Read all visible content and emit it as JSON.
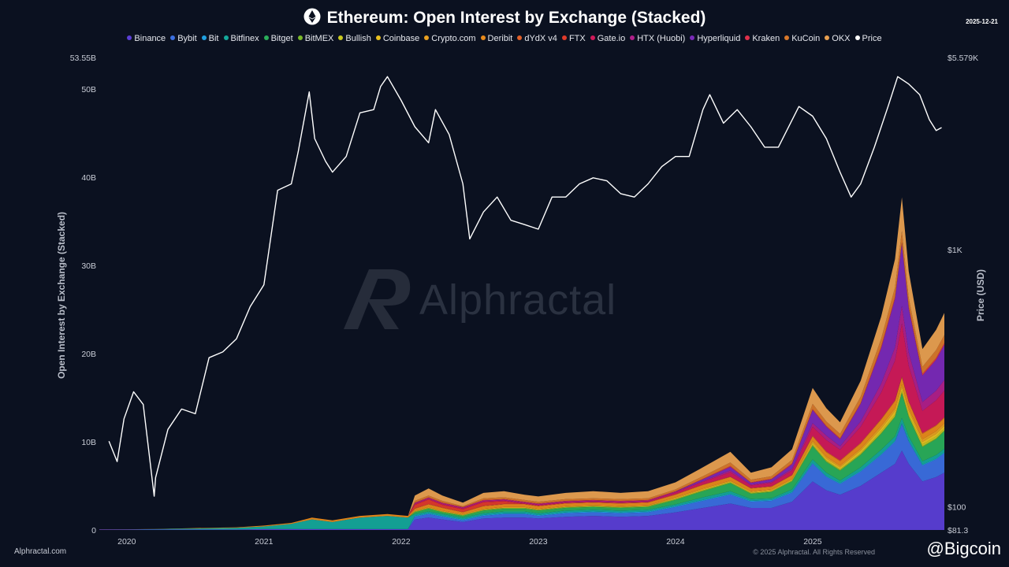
{
  "title": "Ethereum: Open Interest by Exchange (Stacked)",
  "date": "2025-12-21",
  "footer": {
    "site": "Alphractal.com",
    "copyright": "© 2025 Alphractal. All Rights Reserved",
    "brand": "Alphractal",
    "bigcoin": "@Bigcoin"
  },
  "chart_data": {
    "type": "area",
    "title": "Ethereum: Open Interest by Exchange (Stacked)",
    "ylabel": "Open Interest by Exchange (Stacked)",
    "ylabel_right": "Price (USD)",
    "ylim": [
      0,
      53.55
    ],
    "ylim_right": [
      81.3,
      5579
    ],
    "yticks": [
      {
        "value": 0,
        "label": "0"
      },
      {
        "value": 10,
        "label": "10B"
      },
      {
        "value": 20,
        "label": "20B"
      },
      {
        "value": 30,
        "label": "30B"
      },
      {
        "value": 40,
        "label": "40B"
      },
      {
        "value": 50,
        "label": "50B"
      },
      {
        "value": 53.55,
        "label": "53.55B"
      }
    ],
    "yticks_right": [
      {
        "value": 81.3,
        "label": "$81.3"
      },
      {
        "value": 100,
        "label": "$100"
      },
      {
        "value": 1000,
        "label": "$1K"
      },
      {
        "value": 5579,
        "label": "$5.579K"
      }
    ],
    "xlim": [
      2019.8,
      2025.96
    ],
    "xticks": [
      {
        "value": 2020,
        "label": "2020"
      },
      {
        "value": 2021,
        "label": "2021"
      },
      {
        "value": 2022,
        "label": "2022"
      },
      {
        "value": 2023,
        "label": "2023"
      },
      {
        "value": 2024,
        "label": "2024"
      },
      {
        "value": 2025,
        "label": "2025"
      }
    ],
    "x": [
      2019.8,
      2020.0,
      2020.2,
      2020.4,
      2020.6,
      2020.8,
      2021.0,
      2021.2,
      2021.35,
      2021.5,
      2021.7,
      2021.9,
      2022.05,
      2022.1,
      2022.2,
      2022.3,
      2022.45,
      2022.6,
      2022.75,
      2022.9,
      2023.0,
      2023.2,
      2023.4,
      2023.6,
      2023.8,
      2024.0,
      2024.2,
      2024.4,
      2024.55,
      2024.7,
      2024.85,
      2025.0,
      2025.1,
      2025.2,
      2025.35,
      2025.5,
      2025.6,
      2025.65,
      2025.7,
      2025.8,
      2025.9,
      2025.96
    ],
    "series": [
      {
        "name": "Binance",
        "color": "#5b3fd6",
        "values": [
          0.05,
          0.05,
          0.05,
          0.05,
          0.05,
          0.05,
          0.1,
          0.1,
          0.1,
          0.1,
          0.1,
          0.1,
          0.1,
          1.2,
          1.4,
          1.2,
          0.9,
          1.3,
          1.4,
          1.4,
          1.3,
          1.5,
          1.6,
          1.5,
          1.6,
          2.0,
          2.5,
          3.0,
          2.5,
          2.5,
          3.2,
          5.5,
          4.5,
          4.0,
          5.0,
          6.5,
          7.5,
          9.0,
          7.5,
          5.5,
          6.0,
          6.5
        ]
      },
      {
        "name": "Bybit",
        "color": "#3b6fe0",
        "values": [
          0,
          0,
          0,
          0,
          0,
          0,
          0,
          0,
          0,
          0,
          0,
          0,
          0,
          0.3,
          0.4,
          0.3,
          0.2,
          0.3,
          0.4,
          0.4,
          0.3,
          0.4,
          0.4,
          0.4,
          0.4,
          0.6,
          0.8,
          1.0,
          0.7,
          0.8,
          1.0,
          2.0,
          1.5,
          1.2,
          1.6,
          2.0,
          2.5,
          3.0,
          2.5,
          1.8,
          2.0,
          2.2
        ]
      },
      {
        "name": "Bit",
        "color": "#1fa0e0",
        "values": [
          0,
          0,
          0,
          0,
          0,
          0,
          0,
          0,
          0,
          0,
          0,
          0,
          0,
          0.1,
          0.1,
          0.1,
          0.1,
          0.1,
          0.1,
          0.1,
          0.1,
          0.1,
          0.1,
          0.1,
          0.1,
          0.1,
          0.1,
          0.1,
          0.1,
          0.1,
          0.1,
          0.1,
          0.1,
          0.1,
          0.1,
          0.1,
          0.1,
          0.1,
          0.1,
          0.1,
          0.1,
          0.1
        ]
      },
      {
        "name": "Bitfinex",
        "color": "#14a89a",
        "values": [
          0,
          0.02,
          0.05,
          0.1,
          0.15,
          0.2,
          0.3,
          0.6,
          1.1,
          0.8,
          1.3,
          1.5,
          1.3,
          0.2,
          0.2,
          0.2,
          0.2,
          0.2,
          0.2,
          0.2,
          0.2,
          0.2,
          0.2,
          0.2,
          0.2,
          0.2,
          0.3,
          0.3,
          0.2,
          0.2,
          0.3,
          0.4,
          0.4,
          0.3,
          0.4,
          0.5,
          0.5,
          0.6,
          0.5,
          0.4,
          0.4,
          0.4
        ]
      },
      {
        "name": "Bitget",
        "color": "#2aae5a",
        "values": [
          0,
          0,
          0,
          0,
          0,
          0,
          0,
          0,
          0,
          0,
          0,
          0,
          0,
          0.2,
          0.3,
          0.2,
          0.2,
          0.3,
          0.3,
          0.3,
          0.3,
          0.3,
          0.3,
          0.3,
          0.3,
          0.5,
          0.7,
          0.9,
          0.6,
          0.7,
          0.9,
          1.5,
          1.2,
          1.1,
          1.4,
          1.8,
          2.2,
          2.8,
          2.2,
          1.6,
          1.8,
          2.0
        ]
      },
      {
        "name": "BitMEX",
        "color": "#7ab82a",
        "values": [
          0,
          0,
          0,
          0,
          0,
          0,
          0,
          0,
          0,
          0,
          0,
          0,
          0,
          0.1,
          0.1,
          0.1,
          0.1,
          0.1,
          0.1,
          0.1,
          0.1,
          0.1,
          0.1,
          0.1,
          0.1,
          0.1,
          0.1,
          0.1,
          0.1,
          0.1,
          0.1,
          0.1,
          0.1,
          0.1,
          0.1,
          0.1,
          0.1,
          0.1,
          0.1,
          0.1,
          0.1,
          0.1
        ]
      },
      {
        "name": "Bullish",
        "color": "#c8c820",
        "values": [
          0,
          0,
          0,
          0,
          0,
          0,
          0,
          0,
          0,
          0,
          0,
          0,
          0,
          0,
          0,
          0,
          0,
          0,
          0,
          0,
          0,
          0,
          0,
          0,
          0,
          0,
          0,
          0,
          0,
          0,
          0,
          0.1,
          0.1,
          0.1,
          0.1,
          0.2,
          0.2,
          0.2,
          0.2,
          0.2,
          0.2,
          0.2
        ]
      },
      {
        "name": "Coinbase",
        "color": "#e8c020",
        "values": [
          0,
          0,
          0,
          0,
          0,
          0,
          0,
          0,
          0,
          0,
          0,
          0,
          0,
          0,
          0,
          0,
          0,
          0,
          0,
          0,
          0,
          0,
          0,
          0,
          0,
          0.1,
          0.1,
          0.1,
          0.1,
          0.1,
          0.1,
          0.2,
          0.2,
          0.2,
          0.3,
          0.3,
          0.4,
          0.4,
          0.4,
          0.3,
          0.3,
          0.3
        ]
      },
      {
        "name": "Crypto.com",
        "color": "#e8a020",
        "values": [
          0,
          0,
          0,
          0,
          0,
          0,
          0,
          0,
          0,
          0,
          0,
          0,
          0,
          0.1,
          0.1,
          0.1,
          0.1,
          0.1,
          0.1,
          0.1,
          0.1,
          0.1,
          0.1,
          0.1,
          0.1,
          0.1,
          0.1,
          0.1,
          0.1,
          0.1,
          0.1,
          0.2,
          0.2,
          0.2,
          0.2,
          0.3,
          0.3,
          0.3,
          0.3,
          0.3,
          0.3,
          0.3
        ]
      },
      {
        "name": "Deribit",
        "color": "#e88a1a",
        "values": [
          0.01,
          0.01,
          0.02,
          0.03,
          0.05,
          0.05,
          0.1,
          0.1,
          0.2,
          0.2,
          0.2,
          0.2,
          0.2,
          0.2,
          0.3,
          0.3,
          0.2,
          0.3,
          0.3,
          0.3,
          0.3,
          0.3,
          0.3,
          0.3,
          0.3,
          0.3,
          0.4,
          0.4,
          0.3,
          0.3,
          0.4,
          0.5,
          0.5,
          0.5,
          0.6,
          0.7,
          0.8,
          0.8,
          0.7,
          0.6,
          0.6,
          0.6
        ]
      },
      {
        "name": "dYdX v4",
        "color": "#e0602a",
        "values": [
          0,
          0,
          0,
          0,
          0,
          0,
          0,
          0,
          0,
          0,
          0,
          0,
          0,
          0.05,
          0.05,
          0.05,
          0.05,
          0.05,
          0.05,
          0.05,
          0.05,
          0.05,
          0.05,
          0.05,
          0.05,
          0.05,
          0.05,
          0.05,
          0.05,
          0.05,
          0.05,
          0.1,
          0.1,
          0.1,
          0.1,
          0.1,
          0.1,
          0.1,
          0.1,
          0.1,
          0.1,
          0.1
        ]
      },
      {
        "name": "FTX",
        "color": "#e03a2a",
        "values": [
          0,
          0,
          0,
          0,
          0,
          0,
          0,
          0,
          0,
          0,
          0,
          0,
          0,
          0.4,
          0.5,
          0.3,
          0.3,
          0.4,
          0.3,
          0,
          0,
          0,
          0,
          0,
          0,
          0,
          0,
          0,
          0,
          0,
          0,
          0,
          0,
          0,
          0,
          0,
          0,
          0,
          0,
          0,
          0,
          0
        ]
      },
      {
        "name": "Gate.io",
        "color": "#d01a5a",
        "values": [
          0,
          0,
          0,
          0,
          0,
          0,
          0,
          0,
          0,
          0,
          0,
          0,
          0,
          0.1,
          0.1,
          0.1,
          0.1,
          0.1,
          0.1,
          0.1,
          0.1,
          0.1,
          0.1,
          0.1,
          0.1,
          0.2,
          0.3,
          0.5,
          0.3,
          0.4,
          0.5,
          1.0,
          1.3,
          1.2,
          1.8,
          3.0,
          4.5,
          6.0,
          4.0,
          2.5,
          2.8,
          3.0
        ]
      },
      {
        "name": "HTX (Huobi)",
        "color": "#b0208a",
        "values": [
          0,
          0,
          0,
          0,
          0,
          0,
          0,
          0,
          0,
          0,
          0,
          0,
          0,
          0.1,
          0.1,
          0.1,
          0.1,
          0.1,
          0.1,
          0.1,
          0.1,
          0.1,
          0.1,
          0.1,
          0.1,
          0.1,
          0.1,
          0.2,
          0.1,
          0.1,
          0.2,
          0.4,
          0.5,
          0.4,
          0.6,
          1.0,
          1.5,
          2.0,
          1.5,
          1.0,
          1.1,
          1.2
        ]
      },
      {
        "name": "Hyperliquid",
        "color": "#7a2ab8",
        "values": [
          0,
          0,
          0,
          0,
          0,
          0,
          0,
          0,
          0,
          0,
          0,
          0,
          0,
          0,
          0,
          0,
          0,
          0,
          0,
          0,
          0,
          0,
          0,
          0,
          0,
          0,
          0.2,
          0.4,
          0.2,
          0.3,
          0.5,
          1.5,
          1.0,
          0.8,
          2.0,
          4.0,
          5.5,
          7.0,
          5.0,
          3.0,
          3.5,
          4.0
        ]
      },
      {
        "name": "Kraken",
        "color": "#e0304a",
        "values": [
          0,
          0,
          0,
          0,
          0,
          0,
          0,
          0,
          0,
          0,
          0,
          0,
          0,
          0.05,
          0.05,
          0.05,
          0.05,
          0.05,
          0.05,
          0.05,
          0.05,
          0.05,
          0.05,
          0.05,
          0.05,
          0.05,
          0.05,
          0.1,
          0.05,
          0.05,
          0.1,
          0.1,
          0.1,
          0.1,
          0.1,
          0.2,
          0.2,
          0.2,
          0.2,
          0.2,
          0.2,
          0.2
        ]
      },
      {
        "name": "KuCoin",
        "color": "#d8782a",
        "values": [
          0,
          0,
          0,
          0,
          0,
          0,
          0,
          0,
          0,
          0,
          0,
          0,
          0,
          0.2,
          0.2,
          0.2,
          0.1,
          0.2,
          0.2,
          0.2,
          0.2,
          0.2,
          0.2,
          0.2,
          0.2,
          0.2,
          0.3,
          0.4,
          0.3,
          0.3,
          0.4,
          0.6,
          0.5,
          0.5,
          0.7,
          0.9,
          1.1,
          1.3,
          1.0,
          0.8,
          0.9,
          0.9
        ]
      },
      {
        "name": "OKX",
        "color": "#e8a050",
        "values": [
          0,
          0,
          0,
          0,
          0,
          0,
          0,
          0,
          0,
          0,
          0,
          0,
          0,
          0.6,
          0.8,
          0.6,
          0.4,
          0.6,
          0.7,
          0.6,
          0.6,
          0.7,
          0.8,
          0.7,
          0.8,
          0.8,
          1.0,
          1.2,
          0.8,
          1.0,
          1.2,
          1.8,
          1.5,
          1.3,
          1.8,
          2.5,
          3.2,
          3.8,
          3.0,
          2.0,
          2.3,
          2.5
        ]
      }
    ],
    "price": {
      "name": "Price",
      "color": "#ffffff",
      "x": [
        2019.87,
        2019.93,
        2019.98,
        2020.05,
        2020.12,
        2020.2,
        2020.21,
        2020.3,
        2020.4,
        2020.5,
        2020.6,
        2020.7,
        2020.8,
        2020.9,
        2021.0,
        2021.1,
        2021.2,
        2021.25,
        2021.33,
        2021.37,
        2021.45,
        2021.5,
        2021.6,
        2021.7,
        2021.8,
        2021.85,
        2021.9,
        2022.0,
        2022.1,
        2022.2,
        2022.25,
        2022.35,
        2022.45,
        2022.5,
        2022.6,
        2022.7,
        2022.8,
        2022.9,
        2023.0,
        2023.1,
        2023.2,
        2023.3,
        2023.4,
        2023.5,
        2023.6,
        2023.7,
        2023.8,
        2023.9,
        2024.0,
        2024.1,
        2024.2,
        2024.25,
        2024.35,
        2024.45,
        2024.55,
        2024.65,
        2024.75,
        2024.9,
        2025.0,
        2025.1,
        2025.2,
        2025.28,
        2025.35,
        2025.45,
        2025.55,
        2025.62,
        2025.7,
        2025.78,
        2025.85,
        2025.9,
        2025.94
      ],
      "values": [
        180,
        150,
        220,
        280,
        250,
        110,
        130,
        200,
        240,
        230,
        380,
        400,
        450,
        600,
        730,
        1700,
        1800,
        2400,
        4100,
        2700,
        2200,
        2000,
        2300,
        3400,
        3500,
        4300,
        4700,
        3800,
        3000,
        2600,
        3500,
        2800,
        1800,
        1100,
        1400,
        1600,
        1300,
        1250,
        1200,
        1600,
        1600,
        1800,
        1900,
        1850,
        1650,
        1600,
        1800,
        2100,
        2300,
        2300,
        3500,
        4000,
        3100,
        3500,
        3000,
        2500,
        2500,
        3600,
        3300,
        2700,
        2000,
        1600,
        1800,
        2500,
        3600,
        4700,
        4400,
        4000,
        3200,
        2900,
        2980
      ]
    },
    "legend_position": "top-center"
  }
}
